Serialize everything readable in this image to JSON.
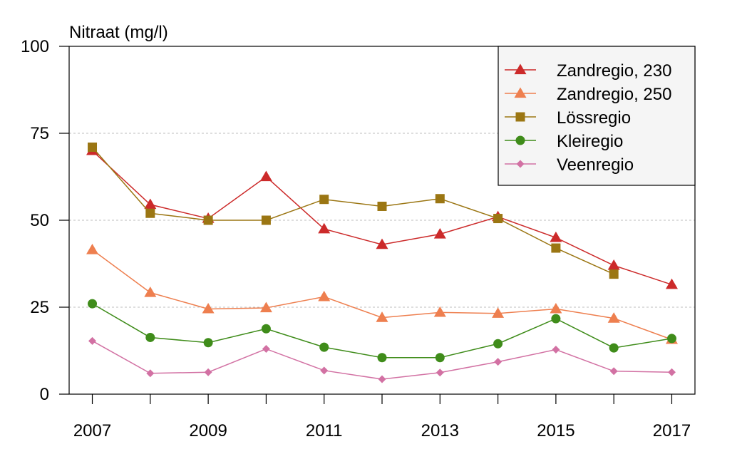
{
  "chart_data": {
    "type": "line",
    "ylabel": "Nitraat (mg/l)",
    "x": [
      2007,
      2008,
      2009,
      2010,
      2011,
      2012,
      2013,
      2014,
      2015,
      2016,
      2017
    ],
    "x_tick_labels": [
      "2007",
      "2009",
      "2011",
      "2013",
      "2015",
      "2017"
    ],
    "y_ticks": [
      0,
      25,
      50,
      75,
      100
    ],
    "ylim": [
      0,
      100
    ],
    "xlim": [
      2006.6,
      2017.4
    ],
    "grid": "horizontal dashed at 25, 50, 75",
    "legend_position": "top-right",
    "series": [
      {
        "name": "Zandregio, 230",
        "color": "#cc2a2a",
        "marker": "triangle",
        "values": [
          70,
          54.5,
          50.5,
          62.5,
          47.5,
          43,
          46,
          51,
          45,
          37,
          31.5
        ]
      },
      {
        "name": "Zandregio, 250",
        "color": "#ee7f4f",
        "marker": "triangle",
        "values": [
          41.5,
          29.2,
          24.5,
          24.8,
          28,
          22,
          23.5,
          23.2,
          24.5,
          21.8,
          15.7
        ]
      },
      {
        "name": "Lössregio",
        "color": "#9b7613",
        "marker": "square",
        "values": [
          71,
          52,
          50,
          50,
          56,
          54,
          56.2,
          50.5,
          42,
          34.5,
          null
        ]
      },
      {
        "name": "Kleiregio",
        "color": "#3f8c1a",
        "marker": "circle",
        "values": [
          26,
          16.3,
          14.8,
          18.8,
          13.5,
          10.5,
          10.5,
          14.5,
          21.7,
          13.3,
          16
        ]
      },
      {
        "name": "Veenregio",
        "color": "#d271a3",
        "marker": "diamond",
        "values": [
          15.3,
          6,
          6.3,
          13,
          6.8,
          4.3,
          6.2,
          9.3,
          12.8,
          6.6,
          6.3
        ]
      }
    ]
  }
}
